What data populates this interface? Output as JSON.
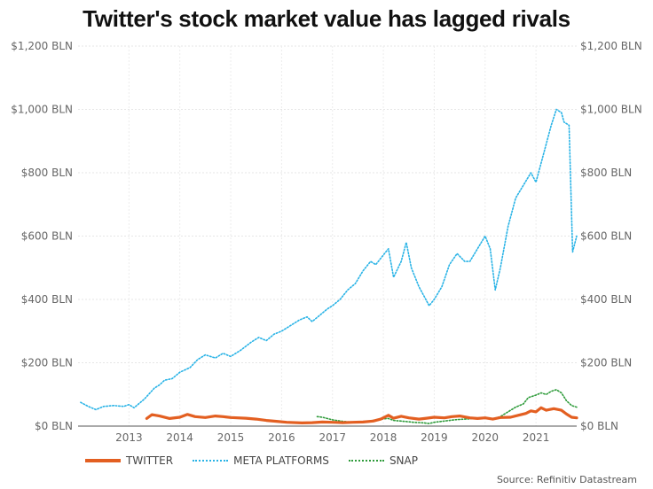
{
  "chart_data": {
    "type": "line",
    "title": "Twitter's stock market value has lagged rivals",
    "y_ticks": [
      "$0 BLN",
      "$200 BLN",
      "$400 BLN",
      "$600 BLN",
      "$800 BLN",
      "$1,000 BLN",
      "$1,200 BLN"
    ],
    "y_values": [
      0,
      200,
      400,
      600,
      800,
      1000,
      1200
    ],
    "x_ticks": [
      "2013",
      "2014",
      "2015",
      "2016",
      "2017",
      "2018",
      "2019",
      "2020",
      "2021"
    ],
    "x_tick_values": [
      2013.0,
      2014.0,
      2015.0,
      2016.0,
      2017.0,
      2018.0,
      2019.0,
      2020.0,
      2021.0
    ],
    "xlim": [
      2012.0,
      2021.8
    ],
    "ylim": [
      0,
      1200
    ],
    "ylabel_right": true,
    "grid": true,
    "legend_position": "bottom",
    "series": [
      {
        "name": "TWITTER",
        "color": "#e35f21",
        "style": "solid",
        "points": [
          [
            2013.35,
            24
          ],
          [
            2013.45,
            36
          ],
          [
            2013.6,
            32
          ],
          [
            2013.8,
            24
          ],
          [
            2014.0,
            28
          ],
          [
            2014.15,
            37
          ],
          [
            2014.3,
            30
          ],
          [
            2014.5,
            27
          ],
          [
            2014.7,
            32
          ],
          [
            2014.85,
            30
          ],
          [
            2015.0,
            27
          ],
          [
            2015.3,
            25
          ],
          [
            2015.5,
            22
          ],
          [
            2015.7,
            18
          ],
          [
            2015.9,
            15
          ],
          [
            2016.1,
            12
          ],
          [
            2016.4,
            10
          ],
          [
            2016.6,
            11
          ],
          [
            2016.8,
            13
          ],
          [
            2017.0,
            12
          ],
          [
            2017.2,
            11
          ],
          [
            2017.4,
            12
          ],
          [
            2017.6,
            13
          ],
          [
            2017.8,
            16
          ],
          [
            2017.95,
            22
          ],
          [
            2018.1,
            34
          ],
          [
            2018.2,
            25
          ],
          [
            2018.35,
            31
          ],
          [
            2018.5,
            26
          ],
          [
            2018.7,
            22
          ],
          [
            2018.85,
            25
          ],
          [
            2019.0,
            28
          ],
          [
            2019.2,
            26
          ],
          [
            2019.35,
            30
          ],
          [
            2019.5,
            32
          ],
          [
            2019.7,
            26
          ],
          [
            2019.85,
            24
          ],
          [
            2020.0,
            26
          ],
          [
            2020.15,
            22
          ],
          [
            2020.3,
            27
          ],
          [
            2020.5,
            28
          ],
          [
            2020.65,
            34
          ],
          [
            2020.8,
            40
          ],
          [
            2020.9,
            48
          ],
          [
            2021.0,
            45
          ],
          [
            2021.1,
            58
          ],
          [
            2021.2,
            50
          ],
          [
            2021.35,
            55
          ],
          [
            2021.5,
            50
          ],
          [
            2021.6,
            38
          ],
          [
            2021.7,
            28
          ],
          [
            2021.8,
            26
          ]
        ]
      },
      {
        "name": "META PLATFORMS",
        "color": "#29b3e6",
        "style": "dotted",
        "points": [
          [
            2012.05,
            75
          ],
          [
            2012.2,
            62
          ],
          [
            2012.35,
            52
          ],
          [
            2012.5,
            62
          ],
          [
            2012.7,
            65
          ],
          [
            2012.9,
            62
          ],
          [
            2013.0,
            68
          ],
          [
            2013.1,
            58
          ],
          [
            2013.3,
            85
          ],
          [
            2013.5,
            120
          ],
          [
            2013.6,
            130
          ],
          [
            2013.7,
            145
          ],
          [
            2013.85,
            150
          ],
          [
            2014.0,
            170
          ],
          [
            2014.2,
            185
          ],
          [
            2014.35,
            210
          ],
          [
            2014.5,
            225
          ],
          [
            2014.7,
            215
          ],
          [
            2014.85,
            230
          ],
          [
            2015.0,
            220
          ],
          [
            2015.2,
            240
          ],
          [
            2015.4,
            265
          ],
          [
            2015.55,
            280
          ],
          [
            2015.7,
            270
          ],
          [
            2015.85,
            290
          ],
          [
            2016.0,
            300
          ],
          [
            2016.2,
            320
          ],
          [
            2016.35,
            335
          ],
          [
            2016.5,
            345
          ],
          [
            2016.6,
            330
          ],
          [
            2016.75,
            350
          ],
          [
            2016.9,
            370
          ],
          [
            2017.0,
            380
          ],
          [
            2017.15,
            400
          ],
          [
            2017.3,
            430
          ],
          [
            2017.45,
            450
          ],
          [
            2017.6,
            490
          ],
          [
            2017.75,
            520
          ],
          [
            2017.85,
            510
          ],
          [
            2018.0,
            540
          ],
          [
            2018.1,
            560
          ],
          [
            2018.2,
            470
          ],
          [
            2018.35,
            520
          ],
          [
            2018.45,
            580
          ],
          [
            2018.55,
            500
          ],
          [
            2018.7,
            440
          ],
          [
            2018.8,
            410
          ],
          [
            2018.9,
            380
          ],
          [
            2019.0,
            400
          ],
          [
            2019.15,
            440
          ],
          [
            2019.3,
            510
          ],
          [
            2019.45,
            545
          ],
          [
            2019.6,
            520
          ],
          [
            2019.7,
            520
          ],
          [
            2019.85,
            560
          ],
          [
            2020.0,
            600
          ],
          [
            2020.1,
            560
          ],
          [
            2020.2,
            430
          ],
          [
            2020.3,
            500
          ],
          [
            2020.45,
            630
          ],
          [
            2020.6,
            720
          ],
          [
            2020.75,
            760
          ],
          [
            2020.9,
            800
          ],
          [
            2021.0,
            770
          ],
          [
            2021.15,
            860
          ],
          [
            2021.3,
            950
          ],
          [
            2021.4,
            1000
          ],
          [
            2021.5,
            990
          ],
          [
            2021.55,
            960
          ],
          [
            2021.65,
            950
          ],
          [
            2021.72,
            550
          ],
          [
            2021.8,
            600
          ]
        ]
      },
      {
        "name": "SNAP",
        "color": "#2e9b3a",
        "style": "dotted",
        "points": [
          [
            2016.7,
            30
          ],
          [
            2016.8,
            28
          ],
          [
            2017.0,
            20
          ],
          [
            2017.2,
            15
          ],
          [
            2017.4,
            12
          ],
          [
            2017.6,
            13
          ],
          [
            2017.8,
            18
          ],
          [
            2017.95,
            22
          ],
          [
            2018.1,
            24
          ],
          [
            2018.2,
            18
          ],
          [
            2018.4,
            15
          ],
          [
            2018.6,
            12
          ],
          [
            2018.8,
            10
          ],
          [
            2018.9,
            8
          ],
          [
            2019.0,
            12
          ],
          [
            2019.2,
            16
          ],
          [
            2019.4,
            20
          ],
          [
            2019.6,
            22
          ],
          [
            2019.8,
            24
          ],
          [
            2020.0,
            26
          ],
          [
            2020.15,
            22
          ],
          [
            2020.3,
            30
          ],
          [
            2020.45,
            45
          ],
          [
            2020.6,
            60
          ],
          [
            2020.75,
            70
          ],
          [
            2020.85,
            90
          ],
          [
            2021.0,
            98
          ],
          [
            2021.1,
            105
          ],
          [
            2021.2,
            100
          ],
          [
            2021.3,
            110
          ],
          [
            2021.4,
            115
          ],
          [
            2021.5,
            105
          ],
          [
            2021.6,
            80
          ],
          [
            2021.7,
            65
          ],
          [
            2021.8,
            60
          ]
        ]
      }
    ]
  },
  "source": "Source: Refinitiv Datastream"
}
